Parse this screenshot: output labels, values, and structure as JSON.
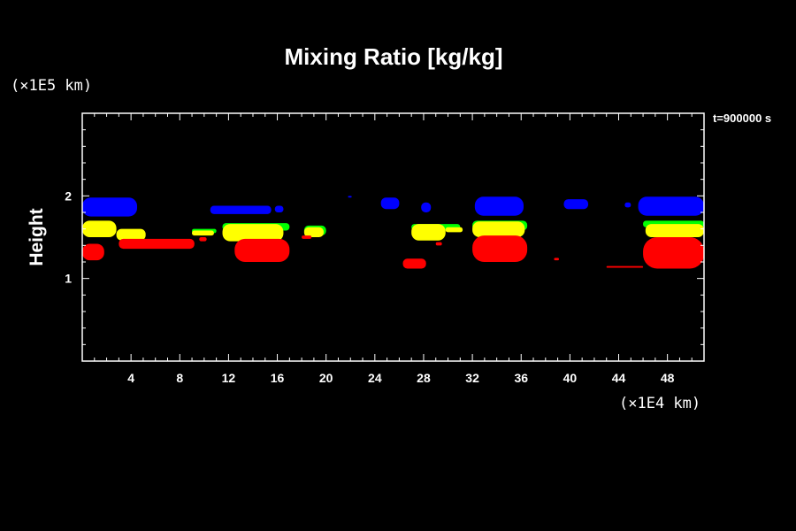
{
  "chart_data": {
    "type": "heatmap",
    "title": "Mixing Ratio [kg/kg]",
    "ylabel": "Height",
    "xlabel": "",
    "x_unit": "(×1E4 km)",
    "y_unit": "(×1E5 km)",
    "time_label": "t=900000 s",
    "xlim": [
      0,
      51
    ],
    "ylim": [
      0,
      3
    ],
    "x_ticks": [
      4,
      8,
      12,
      16,
      20,
      24,
      28,
      32,
      36,
      40,
      44,
      48
    ],
    "y_ticks": [
      1,
      2
    ],
    "background": "#000000",
    "frame_color": "#ffffff",
    "layers": [
      {
        "color": "#0000ff",
        "regions": [
          {
            "x0": 0.0,
            "x1": 4.5,
            "y0": 1.75,
            "y1": 1.98
          },
          {
            "x0": 10.5,
            "x1": 15.5,
            "y0": 1.78,
            "y1": 1.88
          },
          {
            "x0": 15.8,
            "x1": 16.5,
            "y0": 1.8,
            "y1": 1.88
          },
          {
            "x0": 21.8,
            "x1": 22.1,
            "y0": 1.98,
            "y1": 2.0
          },
          {
            "x0": 24.5,
            "x1": 26.0,
            "y0": 1.84,
            "y1": 1.98
          },
          {
            "x0": 27.8,
            "x1": 28.6,
            "y0": 1.8,
            "y1": 1.92
          },
          {
            "x0": 32.2,
            "x1": 36.2,
            "y0": 1.76,
            "y1": 1.99
          },
          {
            "x0": 39.5,
            "x1": 41.5,
            "y0": 1.84,
            "y1": 1.96
          },
          {
            "x0": 44.5,
            "x1": 45.0,
            "y0": 1.86,
            "y1": 1.92
          },
          {
            "x0": 45.6,
            "x1": 51.0,
            "y0": 1.76,
            "y1": 1.99
          }
        ]
      },
      {
        "color": "#00ff00",
        "regions": [
          {
            "x0": 9.0,
            "x1": 11.0,
            "y0": 1.55,
            "y1": 1.6
          },
          {
            "x0": 11.5,
            "x1": 17.0,
            "y0": 1.58,
            "y1": 1.67
          },
          {
            "x0": 18.2,
            "x1": 20.0,
            "y0": 1.52,
            "y1": 1.64
          },
          {
            "x0": 27.0,
            "x1": 31.0,
            "y0": 1.58,
            "y1": 1.66
          },
          {
            "x0": 32.0,
            "x1": 36.5,
            "y0": 1.58,
            "y1": 1.7
          },
          {
            "x0": 46.0,
            "x1": 51.0,
            "y0": 1.62,
            "y1": 1.7
          }
        ]
      },
      {
        "color": "#ffff00",
        "regions": [
          {
            "x0": 0.0,
            "x1": 2.8,
            "y0": 1.5,
            "y1": 1.7
          },
          {
            "x0": 2.8,
            "x1": 5.2,
            "y0": 1.46,
            "y1": 1.6
          },
          {
            "x0": 9.0,
            "x1": 10.8,
            "y0": 1.52,
            "y1": 1.58
          },
          {
            "x0": 11.5,
            "x1": 16.5,
            "y0": 1.45,
            "y1": 1.66
          },
          {
            "x0": 18.2,
            "x1": 19.8,
            "y0": 1.5,
            "y1": 1.62
          },
          {
            "x0": 27.0,
            "x1": 29.8,
            "y0": 1.46,
            "y1": 1.66
          },
          {
            "x0": 29.8,
            "x1": 31.2,
            "y0": 1.56,
            "y1": 1.62
          },
          {
            "x0": 32.0,
            "x1": 36.3,
            "y0": 1.5,
            "y1": 1.69
          },
          {
            "x0": 46.2,
            "x1": 51.0,
            "y0": 1.5,
            "y1": 1.66
          }
        ]
      },
      {
        "color": "#ff0000",
        "regions": [
          {
            "x0": 0.0,
            "x1": 1.8,
            "y0": 1.22,
            "y1": 1.42
          },
          {
            "x0": 3.0,
            "x1": 9.2,
            "y0": 1.36,
            "y1": 1.48
          },
          {
            "x0": 9.6,
            "x1": 10.2,
            "y0": 1.45,
            "y1": 1.5
          },
          {
            "x0": 12.5,
            "x1": 17.0,
            "y0": 1.2,
            "y1": 1.48
          },
          {
            "x0": 18.0,
            "x1": 18.8,
            "y0": 1.48,
            "y1": 1.52
          },
          {
            "x0": 26.3,
            "x1": 28.2,
            "y0": 1.12,
            "y1": 1.24
          },
          {
            "x0": 29.0,
            "x1": 29.5,
            "y0": 1.4,
            "y1": 1.44
          },
          {
            "x0": 32.0,
            "x1": 36.5,
            "y0": 1.2,
            "y1": 1.52
          },
          {
            "x0": 38.7,
            "x1": 39.1,
            "y0": 1.22,
            "y1": 1.25
          },
          {
            "x0": 43.0,
            "x1": 46.0,
            "y0": 1.13,
            "y1": 1.15
          },
          {
            "x0": 46.0,
            "x1": 51.0,
            "y0": 1.12,
            "y1": 1.5
          }
        ]
      }
    ]
  }
}
